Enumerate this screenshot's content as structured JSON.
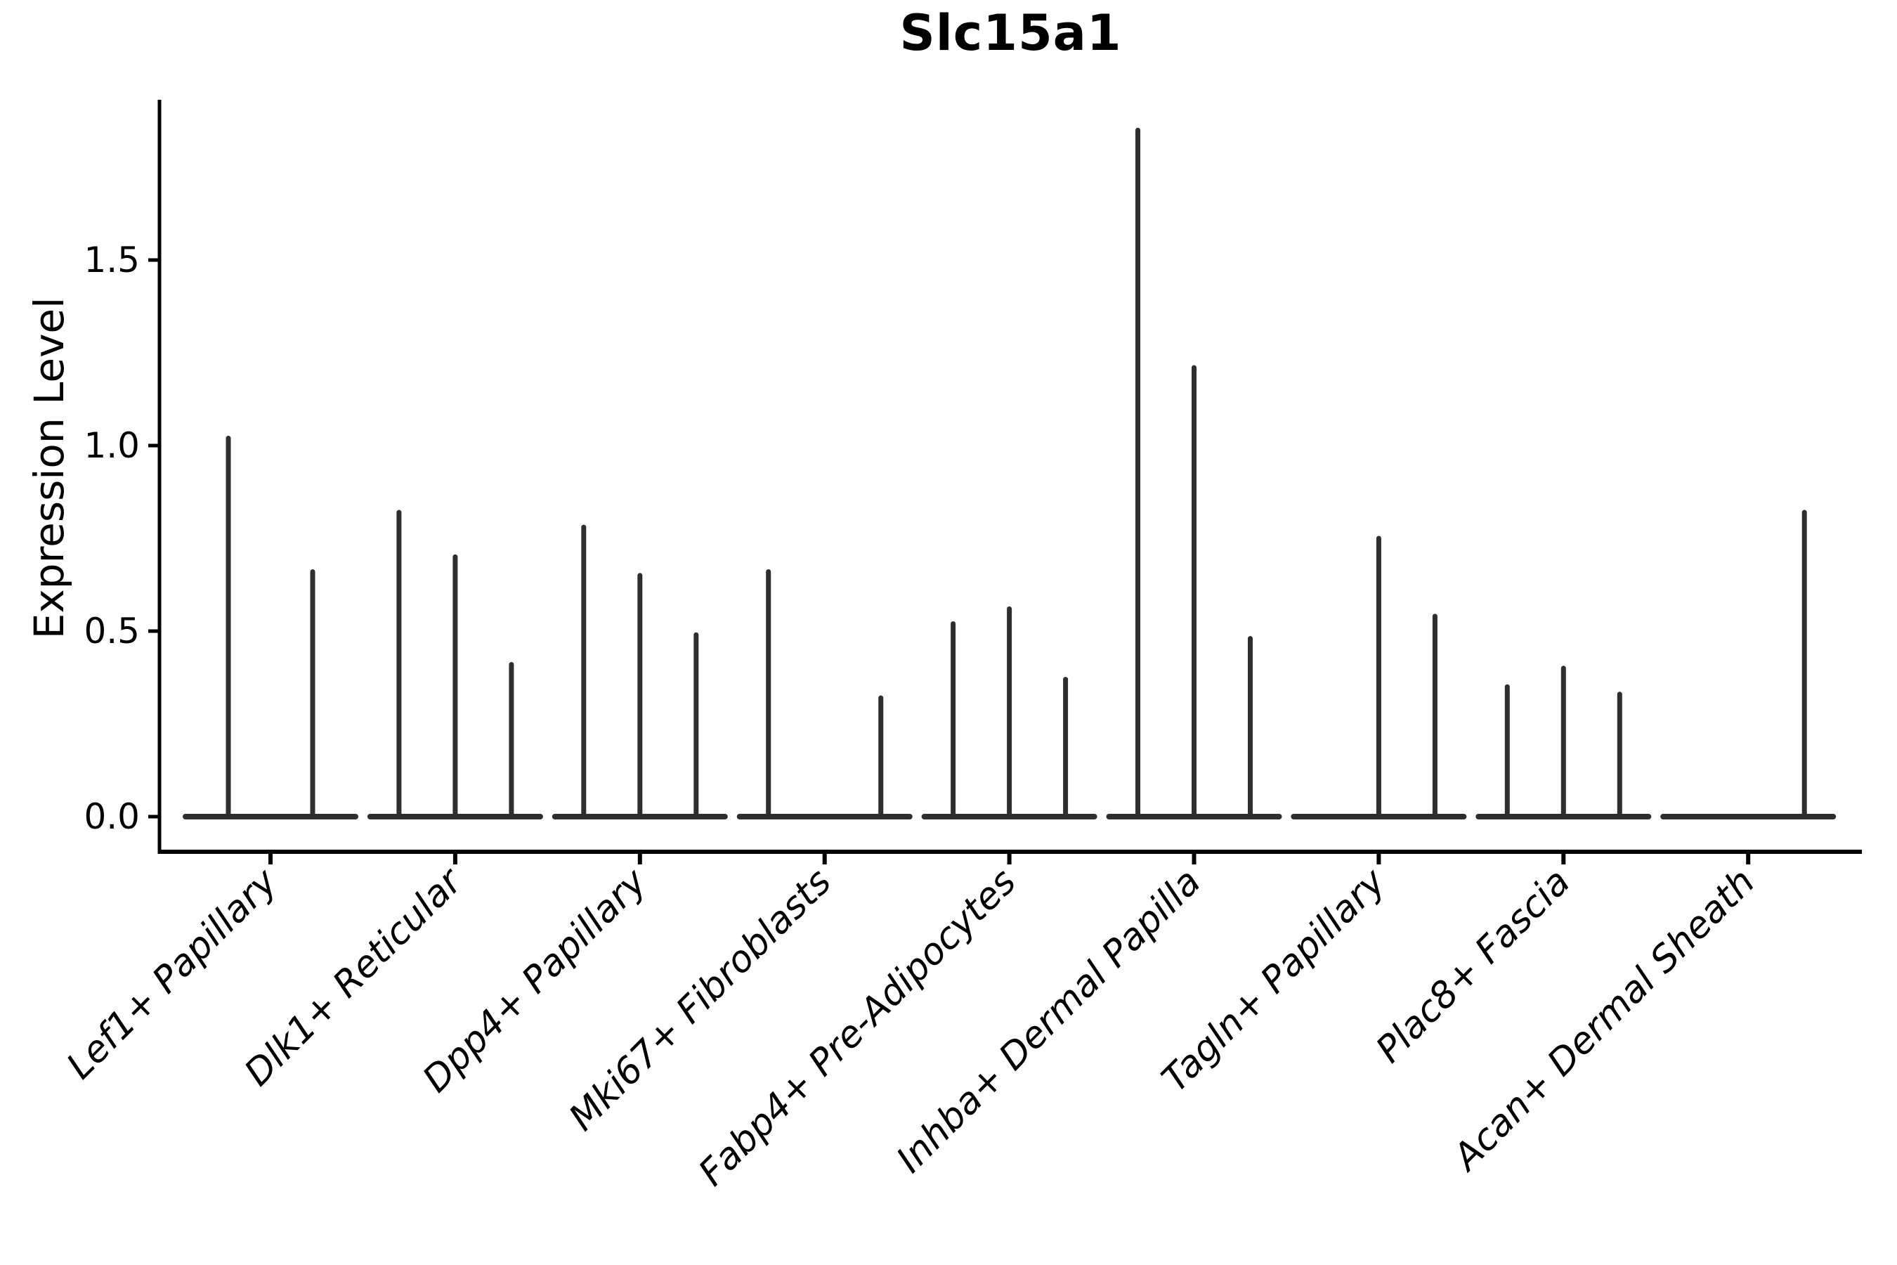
{
  "chart_data": {
    "type": "violin",
    "title": "Slc15a1",
    "xlabel": "",
    "ylabel": "Expression Level",
    "ylim": [
      0,
      1.93
    ],
    "grid": false,
    "legend": "none",
    "yticks": [
      {
        "label": "0.0",
        "value": 0.0
      },
      {
        "label": "0.5",
        "value": 0.5
      },
      {
        "label": "1.0",
        "value": 1.0
      },
      {
        "label": "1.5",
        "value": 1.5
      }
    ],
    "categories": [
      "Lef1+ Papillary",
      "Dlk1+ Reticular",
      "Dpp4+ Papillary",
      "Mki67+ Fibroblasts",
      "Fabp4+ Pre-Adipocytes",
      "Inhba+ Dermal Papilla",
      "Tagln+ Papillary",
      "Plac8+ Fascia",
      "Acan+ Dermal Sheath"
    ],
    "groups": [
      {
        "label": "Lef1+ Papillary",
        "violins": [
          {
            "offset": -60,
            "max": 1.02
          },
          {
            "offset": 60,
            "max": 0.66
          }
        ]
      },
      {
        "label": "Dlk1+ Reticular",
        "violins": [
          {
            "offset": -80,
            "max": 0.82
          },
          {
            "offset": 0,
            "max": 0.7
          },
          {
            "offset": 80,
            "max": 0.41
          }
        ]
      },
      {
        "label": "Dpp4+ Papillary",
        "violins": [
          {
            "offset": -80,
            "max": 0.78
          },
          {
            "offset": 0,
            "max": 0.65
          },
          {
            "offset": 80,
            "max": 0.49
          }
        ]
      },
      {
        "label": "Mki67+ Fibroblasts",
        "violins": [
          {
            "offset": -80,
            "max": 0.66
          },
          {
            "offset": 0,
            "max": 0.0
          },
          {
            "offset": 80,
            "max": 0.32
          }
        ]
      },
      {
        "label": "Fabp4+ Pre-Adipocytes",
        "violins": [
          {
            "offset": -80,
            "max": 0.52
          },
          {
            "offset": 0,
            "max": 0.56
          },
          {
            "offset": 80,
            "max": 0.37
          }
        ]
      },
      {
        "label": "Inhba+ Dermal Papilla",
        "violins": [
          {
            "offset": -80,
            "max": 1.85
          },
          {
            "offset": 0,
            "max": 1.21
          },
          {
            "offset": 80,
            "max": 0.48
          }
        ]
      },
      {
        "label": "Tagln+ Papillary",
        "violins": [
          {
            "offset": -80,
            "max": 0.0
          },
          {
            "offset": 0,
            "max": 0.75
          },
          {
            "offset": 80,
            "max": 0.54
          }
        ]
      },
      {
        "label": "Plac8+ Fascia",
        "violins": [
          {
            "offset": -80,
            "max": 0.35
          },
          {
            "offset": 0,
            "max": 0.4
          },
          {
            "offset": 80,
            "max": 0.33
          }
        ]
      },
      {
        "label": "Acan+ Dermal Sheath",
        "violins": [
          {
            "offset": -80,
            "max": 0.0
          },
          {
            "offset": 0,
            "max": 0.0
          },
          {
            "offset": 80,
            "max": 0.82
          }
        ]
      }
    ],
    "colors": {
      "violin_stroke": "#2e2e2e",
      "axis": "#000000",
      "text": "#000000",
      "background": "#ffffff"
    }
  }
}
